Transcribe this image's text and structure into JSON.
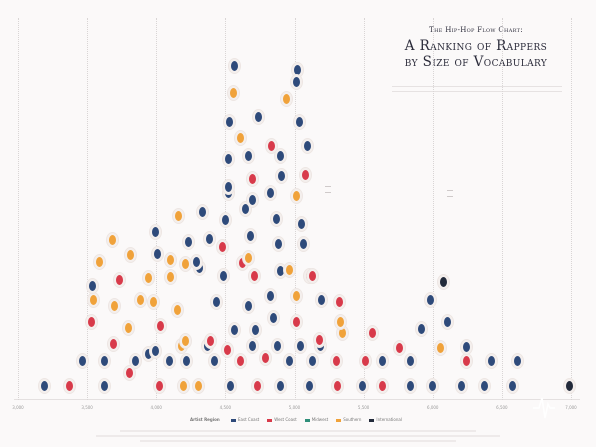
{
  "title": {
    "line1": "The Hip-Hop Flow Chart:",
    "line2": "A Ranking of Rappers",
    "line3": "by Size of Vocabulary"
  },
  "chart_data": {
    "type": "scatter",
    "title": "The Hip-Hop Flow Chart: A Ranking of Rappers by Size of Vocabulary",
    "xlabel": "",
    "ylabel": "",
    "xlim": [
      3000,
      7000
    ],
    "x_ticks": [
      "3,000",
      "3,500",
      "4,000",
      "4,500",
      "5,000",
      "5,500",
      "6,000",
      "6,500",
      "7,000"
    ],
    "grid": true,
    "legend": {
      "title": "Artist Region",
      "placement": "bottom-center"
    },
    "regions": [
      {
        "key": "east",
        "label": "East Coast",
        "color": "#2e4a7a"
      },
      {
        "key": "west",
        "label": "West Coast",
        "color": "#d83a4a"
      },
      {
        "key": "mid",
        "label": "Midwest",
        "color": "#2f8f7a"
      },
      {
        "key": "south",
        "label": "Southern",
        "color": "#f0a23a"
      },
      {
        "key": "intl",
        "label": "International",
        "color": "#222a3a"
      }
    ]
  },
  "legend": {
    "title": "Artist Region",
    "items": [
      {
        "label": "East Coast",
        "color": "#2e4a7a"
      },
      {
        "label": "West Coast",
        "color": "#d83a4a"
      },
      {
        "label": "Midwest",
        "color": "#2f8f7a"
      },
      {
        "label": "Southern",
        "color": "#f0a23a"
      },
      {
        "label": "International",
        "color": "#222a3a"
      }
    ]
  }
}
